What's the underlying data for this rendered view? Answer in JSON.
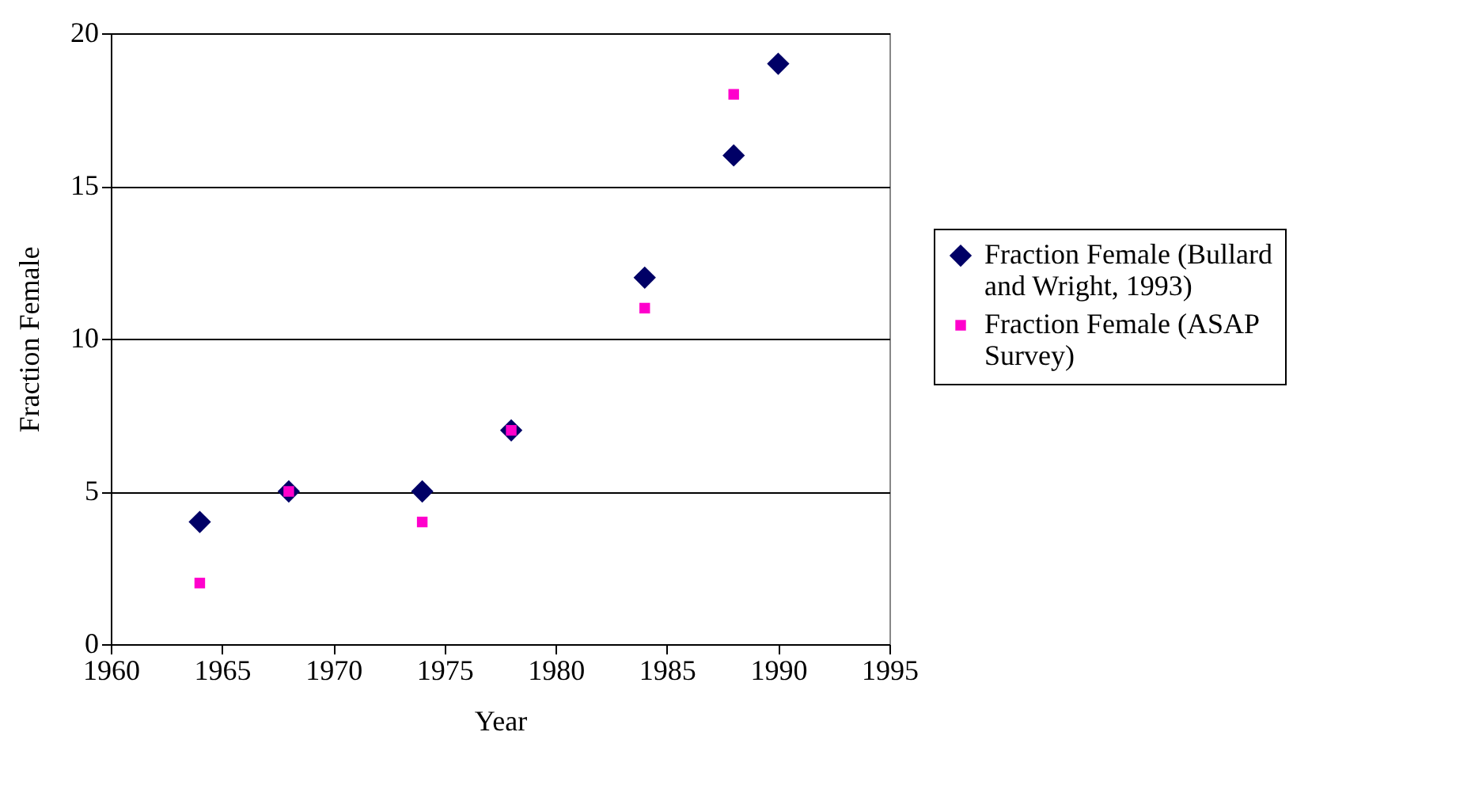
{
  "chart_data": {
    "type": "scatter",
    "xlabel": "Year",
    "ylabel": "Fraction Female",
    "xlim": [
      1960,
      1995
    ],
    "xticks": [
      1960,
      1965,
      1970,
      1975,
      1980,
      1985,
      1990,
      1995
    ],
    "ylim": [
      0,
      20
    ],
    "yticks": [
      0,
      5,
      10,
      15,
      20
    ],
    "grid": "y",
    "legend": "right",
    "series": [
      {
        "name": "Fraction Female (Bullard and Wright, 1993)",
        "color": "#000066",
        "marker": "diamond",
        "x": [
          1964,
          1968,
          1974,
          1978,
          1984,
          1988,
          1990
        ],
        "values": [
          4,
          5,
          5,
          7,
          12,
          16,
          19
        ]
      },
      {
        "name": "Fraction Female (ASAP Survey)",
        "color": "#ff00cc",
        "marker": "square",
        "x": [
          1964,
          1968,
          1974,
          1978,
          1984,
          1988
        ],
        "values": [
          2,
          5,
          4,
          7,
          11,
          18
        ]
      }
    ]
  }
}
